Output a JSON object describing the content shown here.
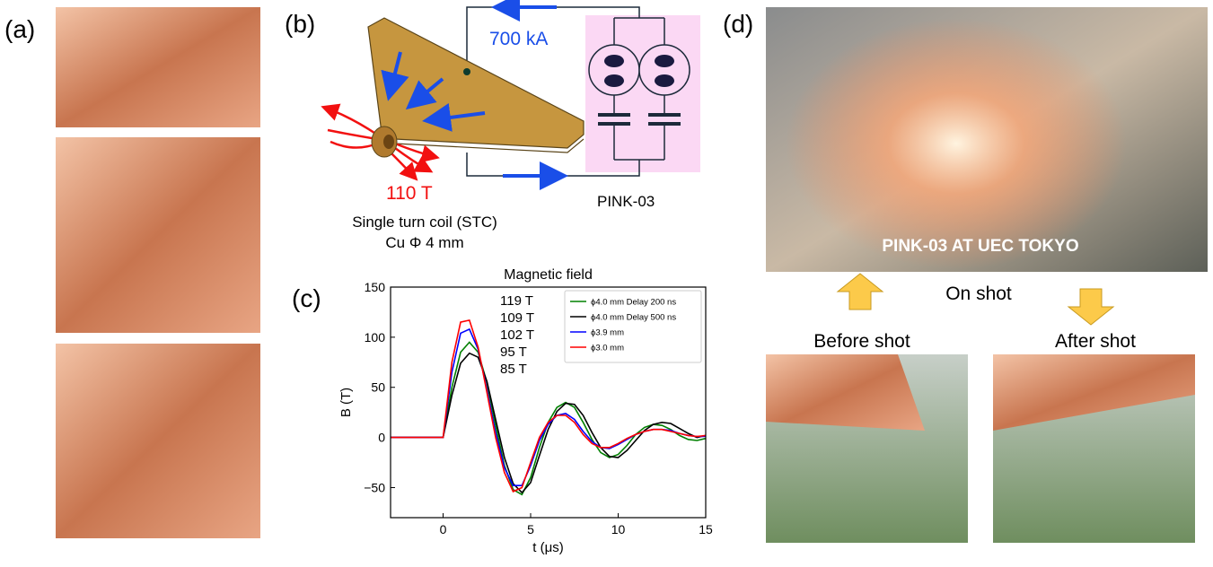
{
  "panels": {
    "a": {
      "label": "(a)"
    },
    "b": {
      "label": "(b)",
      "current": "700 kA",
      "field": "110 T",
      "coil": "Single turn coil (STC)",
      "coil_size": "Cu Φ 4 mm",
      "device": "PINK-03"
    },
    "c": {
      "label": "(c)"
    },
    "d": {
      "label": "(d)",
      "photo_caption": "PINK-03 AT UEC TOKYO",
      "on_shot": "On shot",
      "before": "Before shot",
      "after": "After shot"
    }
  },
  "chart_data": {
    "type": "line",
    "title": "Magnetic field",
    "x_label": "t (μs)",
    "y_label": "B (T)",
    "annotations": [
      "119 T",
      "109 T",
      "102 T",
      "95 T",
      "85 T"
    ],
    "x": [
      -3,
      0,
      0.5,
      1,
      1.5,
      2,
      2.5,
      3,
      3.5,
      4,
      4.5,
      5,
      5.5,
      6,
      6.5,
      7,
      7.5,
      8,
      8.5,
      9,
      9.5,
      10,
      10.5,
      11,
      11.5,
      12,
      12.5,
      13,
      13.5,
      14,
      14.5,
      15
    ],
    "series": [
      {
        "name": "ϕ4.0 mm Delay 200 ns",
        "color": "#008000",
        "values": [
          0,
          0,
          50,
          85,
          95,
          85,
          55,
          12,
          -28,
          -52,
          -57,
          -40,
          -10,
          15,
          30,
          35,
          30,
          15,
          -2,
          -15,
          -20,
          -17,
          -8,
          3,
          10,
          13,
          12,
          8,
          2,
          -2,
          -3,
          -1
        ]
      },
      {
        "name": "ϕ4.0 mm Delay 500 ns",
        "color": "#000000",
        "values": [
          0,
          0,
          42,
          74,
          84,
          80,
          56,
          18,
          -20,
          -46,
          -55,
          -45,
          -18,
          8,
          26,
          34,
          33,
          22,
          5,
          -10,
          -19,
          -20,
          -13,
          -3,
          7,
          13,
          15,
          14,
          9,
          4,
          0,
          2
        ]
      },
      {
        "name": "ϕ3.9 mm",
        "color": "#0000ff",
        "values": [
          0,
          0,
          65,
          104,
          108,
          88,
          48,
          5,
          -30,
          -48,
          -48,
          -28,
          -3,
          13,
          22,
          24,
          18,
          6,
          -4,
          -10,
          -11,
          -7,
          -2,
          3,
          6,
          8,
          8,
          7,
          4,
          2,
          1,
          1
        ]
      },
      {
        "name": "ϕ3.0 mm",
        "color": "#ff0000",
        "values": [
          0,
          0,
          75,
          115,
          117,
          90,
          45,
          0,
          -35,
          -54,
          -50,
          -25,
          0,
          15,
          22,
          22,
          15,
          3,
          -6,
          -10,
          -10,
          -6,
          -1,
          3,
          6,
          8,
          8,
          6,
          4,
          2,
          1,
          2
        ]
      }
    ],
    "xlim": [
      -3,
      15
    ],
    "ylim": [
      -80,
      150
    ],
    "xticks": [
      0,
      5,
      10,
      15
    ],
    "yticks": [
      {
        "value": -50,
        "label": "−50"
      },
      0,
      50,
      100,
      150
    ],
    "legend": "upper right"
  }
}
